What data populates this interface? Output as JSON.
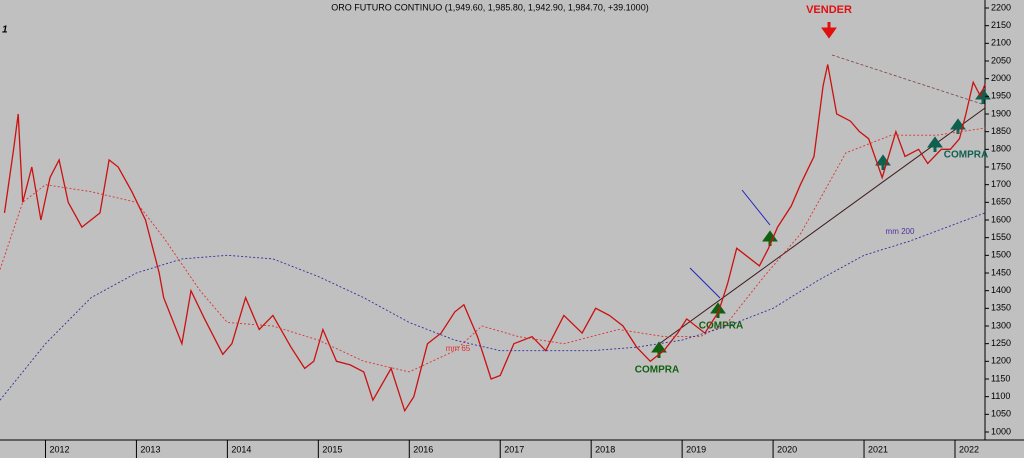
{
  "chart_data": {
    "type": "line",
    "title": "ORO FUTURO CONTINUO (1,949.60, 1,985.80, 1,942.90, 1,984.70, +39.1000)",
    "corner_label": "1",
    "annotations": [
      "VENDER",
      "COMPRA",
      "COMPRA",
      "COMPRA",
      "mm 65",
      "mm 200"
    ],
    "xlim": [
      2011.5,
      2022.33
    ],
    "xticks": [
      2012,
      2013,
      2014,
      2015,
      2016,
      2017,
      2018,
      2019,
      2020,
      2021,
      2022
    ],
    "ylim": [
      1000,
      2200
    ],
    "yticks": [
      1000,
      1050,
      1100,
      1150,
      1200,
      1250,
      1300,
      1350,
      1400,
      1450,
      1500,
      1550,
      1600,
      1650,
      1700,
      1750,
      1800,
      1850,
      1900,
      1950,
      2000,
      2050,
      2100,
      2150,
      2200
    ],
    "series": [
      {
        "color": "#cc1010",
        "dash": false,
        "x": [
          2011.55,
          2011.65,
          2011.7,
          2011.75,
          2011.85,
          2011.95,
          2012.05,
          2012.15,
          2012.25,
          2012.4,
          2012.5,
          2012.6,
          2012.7,
          2012.8,
          2012.95,
          2013.1,
          2013.25,
          2013.3,
          2013.5,
          2013.6,
          2013.75,
          2013.95,
          2014.05,
          2014.2,
          2014.35,
          2014.5,
          2014.7,
          2014.85,
          2014.95,
          2015.05,
          2015.2,
          2015.35,
          2015.5,
          2015.6,
          2015.8,
          2015.95,
          2016.05,
          2016.2,
          2016.35,
          2016.5,
          2016.6,
          2016.75,
          2016.9,
          2017.0,
          2017.15,
          2017.35,
          2017.5,
          2017.7,
          2017.9,
          2018.05,
          2018.2,
          2018.35,
          2018.5,
          2018.65,
          2018.8,
          2018.95,
          2019.05,
          2019.25,
          2019.4,
          2019.5,
          2019.6,
          2019.7,
          2019.85,
          2019.95,
          2020.05,
          2020.2,
          2020.3,
          2020.45,
          2020.55,
          2020.6,
          2020.7,
          2020.85,
          2020.95,
          2021.05,
          2021.2,
          2021.35,
          2021.45,
          2021.6,
          2021.7,
          2021.85,
          2021.95,
          2022.05,
          2022.12,
          2022.2,
          2022.28,
          2022.33
        ],
        "values": [
          1620,
          1800,
          1900,
          1650,
          1750,
          1600,
          1720,
          1770,
          1650,
          1580,
          1600,
          1620,
          1770,
          1750,
          1680,
          1600,
          1450,
          1380,
          1250,
          1400,
          1320,
          1220,
          1250,
          1380,
          1290,
          1330,
          1240,
          1180,
          1200,
          1290,
          1200,
          1190,
          1170,
          1090,
          1180,
          1060,
          1100,
          1250,
          1280,
          1340,
          1360,
          1270,
          1150,
          1160,
          1250,
          1270,
          1230,
          1330,
          1280,
          1350,
          1330,
          1300,
          1240,
          1200,
          1230,
          1280,
          1320,
          1280,
          1340,
          1420,
          1520,
          1500,
          1470,
          1520,
          1580,
          1640,
          1700,
          1780,
          1980,
          2040,
          1900,
          1880,
          1850,
          1830,
          1720,
          1850,
          1780,
          1800,
          1760,
          1800,
          1800,
          1830,
          1900,
          1990,
          1950,
          1985
        ]
      },
      {
        "color": "#e03030",
        "dash": true,
        "x": [
          2011.5,
          2011.75,
          2012.0,
          2012.5,
          2013.0,
          2013.3,
          2013.7,
          2014.0,
          2014.5,
          2015.0,
          2015.5,
          2016.0,
          2016.5,
          2016.8,
          2017.2,
          2017.7,
          2018.3,
          2018.8,
          2019.2,
          2019.5,
          2019.9,
          2020.3,
          2020.8,
          2021.3,
          2021.8,
          2022.33
        ],
        "values": [
          1460,
          1650,
          1700,
          1680,
          1650,
          1550,
          1400,
          1310,
          1300,
          1260,
          1200,
          1170,
          1230,
          1300,
          1270,
          1250,
          1290,
          1270,
          1270,
          1310,
          1440,
          1560,
          1790,
          1840,
          1840,
          1860
        ]
      },
      {
        "color": "#3030a0",
        "dash": true,
        "x": [
          2011.5,
          2012.0,
          2012.5,
          2013.0,
          2013.5,
          2014.0,
          2014.5,
          2015.0,
          2015.5,
          2016.0,
          2016.5,
          2017.0,
          2017.5,
          2018.0,
          2018.5,
          2019.0,
          2019.5,
          2020.0,
          2020.5,
          2021.0,
          2021.5,
          2022.33
        ],
        "values": [
          1090,
          1250,
          1380,
          1450,
          1490,
          1500,
          1490,
          1440,
          1380,
          1310,
          1260,
          1230,
          1230,
          1230,
          1240,
          1260,
          1300,
          1350,
          1430,
          1500,
          1540,
          1620
        ]
      }
    ]
  }
}
